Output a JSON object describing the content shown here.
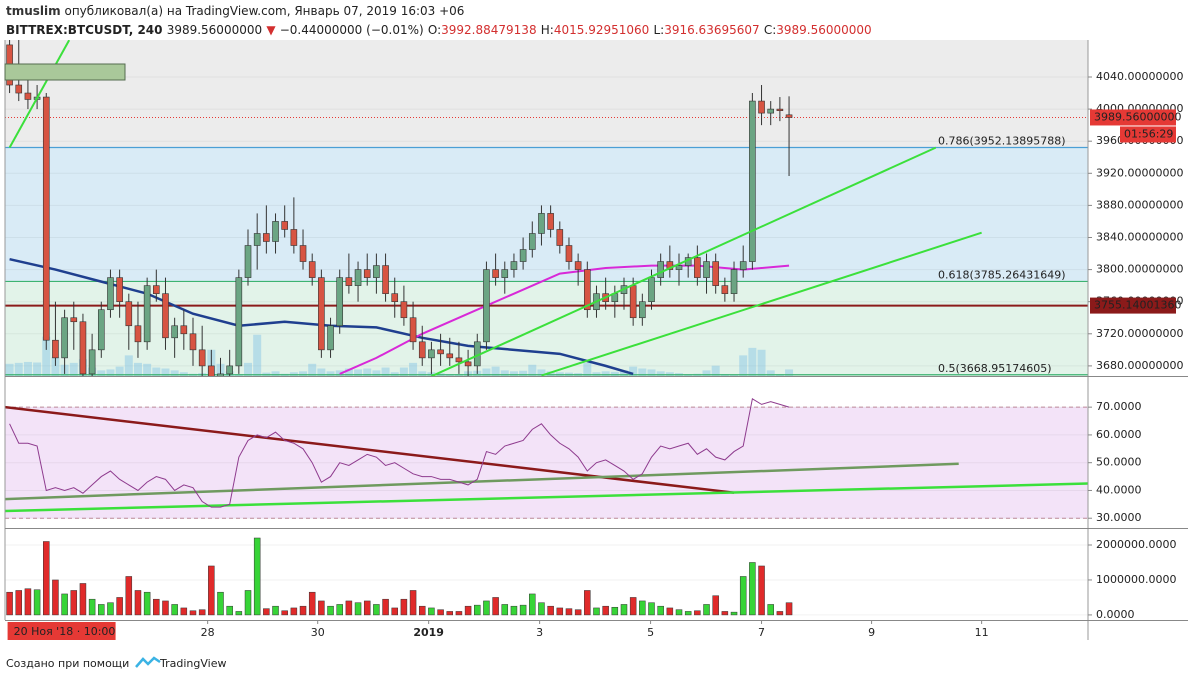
{
  "header": {
    "user": "tmuslim",
    "published": "опубликовал(а) на TradingView.com, Январь 07, 2019 16:03 +06",
    "symbol": "BITTREX:BTCUSDT, 240",
    "price": "3989.56000000",
    "arrow": "▼",
    "change": "−0.44000000 (−0.01%)",
    "ohlc": [
      {
        "key": "O:",
        "value": "3992.88479138"
      },
      {
        "key": "H:",
        "value": "4015.92951060"
      },
      {
        "key": "L:",
        "value": "3916.63695607"
      },
      {
        "key": "C:",
        "value": "3989.56000000"
      }
    ]
  },
  "footer": {
    "created": "Создано при помощи",
    "brand": "TradingView"
  },
  "chart_data": [
    {
      "type": "candlestick",
      "up_color": "#6ba583",
      "down_color": "#d75442",
      "xlim": [
        -0.5,
        117.6
      ],
      "ylim": [
        3667.4,
        4086.1
      ],
      "xticks": [
        {
          "value": 21.6,
          "label": "28"
        },
        {
          "value": 33.6,
          "label": "30"
        },
        {
          "value": 45.7,
          "label": "2019"
        },
        {
          "value": 57.8,
          "label": "3"
        },
        {
          "value": 69.9,
          "label": "5"
        },
        {
          "value": 82.0,
          "label": "7"
        },
        {
          "value": 94.0,
          "label": "9"
        },
        {
          "value": 106.0,
          "label": "11"
        }
      ],
      "crosshair": {
        "value": 0,
        "label": "20 Ноя '18 · 10:00"
      },
      "yticks": [
        {
          "value": 3680,
          "label": "3680.00000000"
        },
        {
          "value": 3720,
          "label": "3720.00000000"
        },
        {
          "value": 3760,
          "label": "3760.00000000"
        },
        {
          "value": 3800,
          "label": "3800.00000000"
        },
        {
          "value": 3840,
          "label": "3840.00000000"
        },
        {
          "value": 3880,
          "label": "3880.00000000"
        },
        {
          "value": 3920,
          "label": "3920.00000000"
        },
        {
          "value": 3960,
          "label": "3960.00000000"
        },
        {
          "value": 4000,
          "label": "4000.00000000"
        },
        {
          "value": 4040,
          "label": "4040.00000000"
        }
      ],
      "open": [
        4080,
        4030,
        4020,
        4012,
        4015,
        3712,
        3690,
        3740,
        3735,
        3670,
        3700,
        3750,
        3790,
        3760,
        3730,
        3710,
        3780,
        3770,
        3715,
        3730,
        3720,
        3700,
        3680,
        3660,
        3670,
        3680,
        3790,
        3830,
        3845,
        3835,
        3860,
        3850,
        3830,
        3810,
        3790,
        3700,
        3730,
        3790,
        3780,
        3800,
        3790,
        3805,
        3770,
        3760,
        3740,
        3710,
        3690,
        3700,
        3695,
        3690,
        3685,
        3680,
        3710,
        3800,
        3790,
        3800,
        3810,
        3825,
        3845,
        3870,
        3850,
        3830,
        3810,
        3800,
        3750,
        3770,
        3760,
        3770,
        3780,
        3740,
        3760,
        3790,
        3810,
        3800,
        3805,
        3815,
        3790,
        3810,
        3780,
        3770,
        3800,
        3810,
        4010,
        3995,
        4000,
        3992.88479138
      ],
      "high": [
        4100,
        4090,
        4040,
        4030,
        4020,
        3760,
        3750,
        3760,
        3745,
        3720,
        3760,
        3800,
        3800,
        3770,
        3760,
        3790,
        3800,
        3790,
        3740,
        3750,
        3740,
        3730,
        3700,
        3690,
        3700,
        3800,
        3850,
        3870,
        3880,
        3870,
        3880,
        3890,
        3850,
        3820,
        3800,
        3740,
        3800,
        3820,
        3810,
        3820,
        3820,
        3820,
        3790,
        3780,
        3760,
        3730,
        3710,
        3720,
        3715,
        3710,
        3700,
        3720,
        3810,
        3820,
        3810,
        3820,
        3840,
        3860,
        3880,
        3880,
        3860,
        3840,
        3820,
        3810,
        3780,
        3790,
        3780,
        3790,
        3790,
        3770,
        3800,
        3820,
        3830,
        3820,
        3820,
        3830,
        3820,
        3820,
        3790,
        3810,
        3830,
        4020,
        4030,
        4010,
        4015,
        4015.9295106
      ],
      "low": [
        4020,
        4010,
        4000,
        4000,
        3700,
        3680,
        3670,
        3700,
        3660,
        3660,
        3690,
        3740,
        3740,
        3700,
        3690,
        3700,
        3760,
        3700,
        3690,
        3700,
        3680,
        3660,
        3640,
        3630,
        3650,
        3670,
        3780,
        3800,
        3820,
        3820,
        3840,
        3820,
        3800,
        3780,
        3690,
        3690,
        3720,
        3770,
        3760,
        3780,
        3770,
        3760,
        3740,
        3730,
        3700,
        3680,
        3670,
        3680,
        3680,
        3670,
        3660,
        3670,
        3700,
        3780,
        3770,
        3790,
        3800,
        3815,
        3830,
        3840,
        3820,
        3800,
        3780,
        3740,
        3740,
        3750,
        3740,
        3750,
        3730,
        3730,
        3750,
        3780,
        3790,
        3780,
        3790,
        3780,
        3770,
        3770,
        3760,
        3760,
        3790,
        3800,
        3980,
        3980,
        3985,
        3916.63695607
      ],
      "close": [
        4030,
        4020,
        4012,
        4015,
        3712,
        3690,
        3740,
        3735,
        3670,
        3700,
        3750,
        3790,
        3760,
        3730,
        3710,
        3780,
        3770,
        3715,
        3730,
        3720,
        3700,
        3680,
        3660,
        3670,
        3680,
        3790,
        3830,
        3845,
        3835,
        3860,
        3850,
        3830,
        3810,
        3790,
        3700,
        3730,
        3790,
        3780,
        3800,
        3790,
        3805,
        3770,
        3760,
        3740,
        3710,
        3690,
        3700,
        3695,
        3690,
        3685,
        3680,
        3710,
        3800,
        3790,
        3800,
        3810,
        3825,
        3845,
        3870,
        3850,
        3830,
        3810,
        3800,
        3750,
        3770,
        3760,
        3770,
        3780,
        3740,
        3760,
        3790,
        3810,
        3800,
        3805,
        3815,
        3790,
        3810,
        3780,
        3770,
        3800,
        3810,
        4010,
        3995,
        4000,
        3998,
        3989.56
      ],
      "fib_levels": [
        {
          "value": 3952.13895788,
          "label": "0.786(3952.13895788)",
          "color": "#4a9fd5"
        },
        {
          "value": 3785.26431649,
          "label": "0.618(3785.26431649)",
          "color": "#3cb371"
        },
        {
          "value": 3668.95174605,
          "label": "0.5(3668.95174605)",
          "color": "#3cb371"
        }
      ],
      "zone_colors": [
        "#ececec",
        "#d9ebf6",
        "#e2f3e9"
      ],
      "support": {
        "value": 3755.1400136,
        "label": "3755.14001360",
        "color": "#8b1a1a"
      },
      "last_price": {
        "value": 3989.56,
        "label": "3989.56000000",
        "color": "#e53935"
      },
      "countdown": "01:56:29",
      "lines": [
        {
          "color": "#1f3f8f",
          "width": 2.5,
          "x": [
            0,
            5,
            10,
            15,
            20,
            25,
            30,
            35,
            40,
            45,
            50,
            55,
            60,
            65,
            68
          ],
          "values": [
            3813,
            3800,
            3785,
            3770,
            3745,
            3730,
            3735,
            3730,
            3728,
            3715,
            3705,
            3700,
            3695,
            3680,
            3670
          ]
        },
        {
          "color": "#d829d8",
          "width": 2,
          "x": [
            36,
            40,
            45,
            50,
            55,
            60,
            65,
            70,
            75,
            80,
            85
          ],
          "values": [
            3670,
            3690,
            3720,
            3745,
            3770,
            3795,
            3802,
            3805,
            3805,
            3800,
            3805
          ]
        }
      ],
      "trendlines": [
        {
          "color": "#3be03b",
          "x": [
            0,
            6.5
          ],
          "values": [
            3952,
            4086
          ]
        },
        {
          "color": "#3be03b",
          "x": [
            46,
            101
          ],
          "values": [
            3667,
            3952
          ]
        },
        {
          "color": "#3be03b",
          "x": [
            58,
            106
          ],
          "values": [
            3668,
            3846
          ]
        }
      ]
    },
    {
      "type": "line",
      "color": "#8e3b8e",
      "ylim": [
        27.2,
        80.5
      ],
      "band": [
        30,
        70
      ],
      "band_color": "#f3e3f8",
      "yticks": [
        {
          "value": 30,
          "label": "30.0000"
        },
        {
          "value": 40,
          "label": "40.0000"
        },
        {
          "value": 50,
          "label": "50.0000"
        },
        {
          "value": 60,
          "label": "60.0000"
        },
        {
          "value": 70,
          "label": "70.0000"
        }
      ],
      "values": [
        64,
        57,
        57,
        56,
        40,
        41,
        40,
        41,
        39,
        42,
        45,
        47,
        44,
        42,
        40,
        43,
        45,
        44,
        40,
        42,
        41,
        36,
        34,
        34,
        35,
        52,
        58,
        60,
        59,
        61,
        58,
        57,
        55,
        50,
        43,
        45,
        50,
        49,
        51,
        53,
        52,
        49,
        50,
        48,
        46,
        45,
        45,
        44,
        44,
        43,
        42,
        44,
        54,
        53,
        56,
        57,
        58,
        62,
        64,
        60,
        57,
        55,
        52,
        47,
        50,
        51,
        49,
        47,
        44,
        46,
        52,
        56,
        55,
        56,
        57,
        53,
        55,
        52,
        51,
        54,
        56,
        73,
        71,
        72,
        71,
        70
      ],
      "trendlines": [
        {
          "color": "#8b1a1a",
          "x": [
            -0.5,
            79
          ],
          "values": [
            70,
            39.2
          ]
        },
        {
          "color": "#6f9a5f",
          "x": [
            -0.5,
            103.5
          ],
          "values": [
            36.9,
            49.6
          ]
        },
        {
          "color": "#3be03b",
          "x": [
            -0.5,
            117.6
          ],
          "values": [
            32.6,
            42.5
          ]
        }
      ]
    },
    {
      "type": "bar",
      "ylim": [
        -145000,
        2400000
      ],
      "yticks": [
        {
          "value": 0,
          "label": "0.0000"
        },
        {
          "value": 1000000,
          "label": "1000000.0000"
        },
        {
          "value": 2000000,
          "label": "2000000.0000"
        }
      ],
      "values": [
        650000,
        700000,
        750000,
        720000,
        2100000,
        1000000,
        600000,
        700000,
        900000,
        450000,
        300000,
        350000,
        500000,
        1100000,
        700000,
        650000,
        450000,
        400000,
        300000,
        200000,
        120000,
        150000,
        1400000,
        650000,
        250000,
        100000,
        700000,
        2200000,
        180000,
        250000,
        120000,
        200000,
        250000,
        650000,
        400000,
        250000,
        300000,
        400000,
        350000,
        400000,
        300000,
        450000,
        200000,
        450000,
        700000,
        250000,
        200000,
        150000,
        100000,
        100000,
        250000,
        280000,
        400000,
        500000,
        300000,
        250000,
        280000,
        600000,
        350000,
        250000,
        200000,
        180000,
        150000,
        700000,
        200000,
        250000,
        220000,
        300000,
        500000,
        400000,
        350000,
        250000,
        200000,
        150000,
        100000,
        120000,
        300000,
        550000,
        100000,
        80000,
        1100000,
        1500000,
        1400000,
        300000,
        100000,
        350000
      ]
    }
  ]
}
